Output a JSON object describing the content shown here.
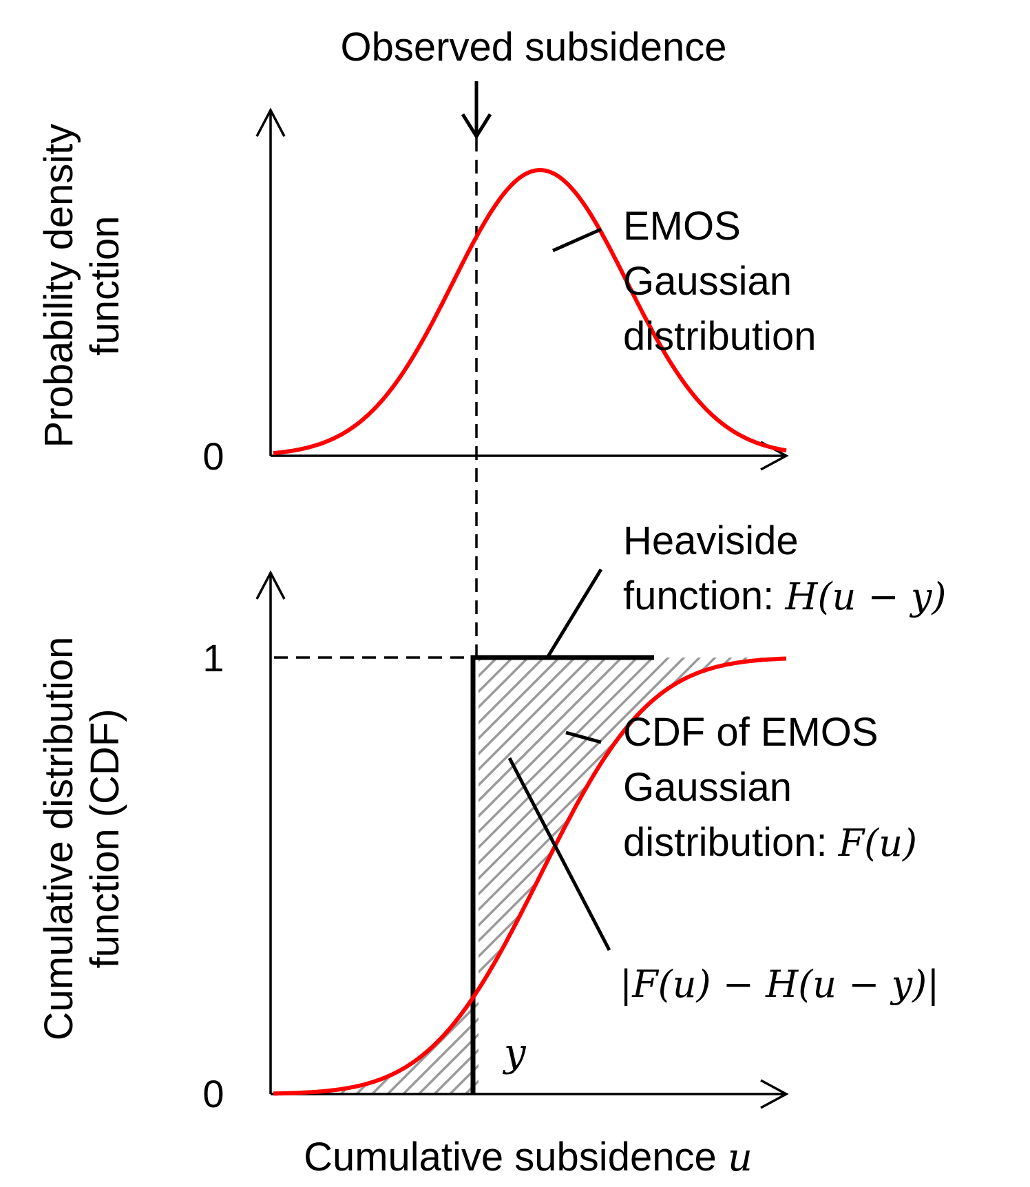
{
  "title": "Observed subsidence",
  "top_panel": {
    "ylabel_line1": "Probability density",
    "ylabel_line2": "function",
    "y_tick_zero": "0",
    "curve_label": [
      "EMOS",
      "Gaussian",
      "distribution"
    ]
  },
  "bottom_panel": {
    "ylabel_line1": "Cumulative distribution",
    "ylabel_line2": "function (CDF)",
    "y_tick_zero": "0",
    "y_tick_one": "1",
    "heaviside_label": {
      "line1": "Heaviside",
      "line2_text": "function: ",
      "line2_math": "H(u − y)"
    },
    "cdf_label": {
      "line1": "CDF of EMOS",
      "line2": "Gaussian",
      "line3_text": "distribution: ",
      "line3_math": "F(u)"
    },
    "area_label": "|F(u) − H(u − y)|",
    "y_marker": "y"
  },
  "xlabel": {
    "text": "Cumulative subsidence ",
    "math": "u"
  },
  "colors": {
    "curve": "#ff0000",
    "axes": "#000000",
    "hatch": "#999999"
  },
  "model": {
    "mean": 0.52,
    "sd": 0.17,
    "observed_y": 0.4
  }
}
